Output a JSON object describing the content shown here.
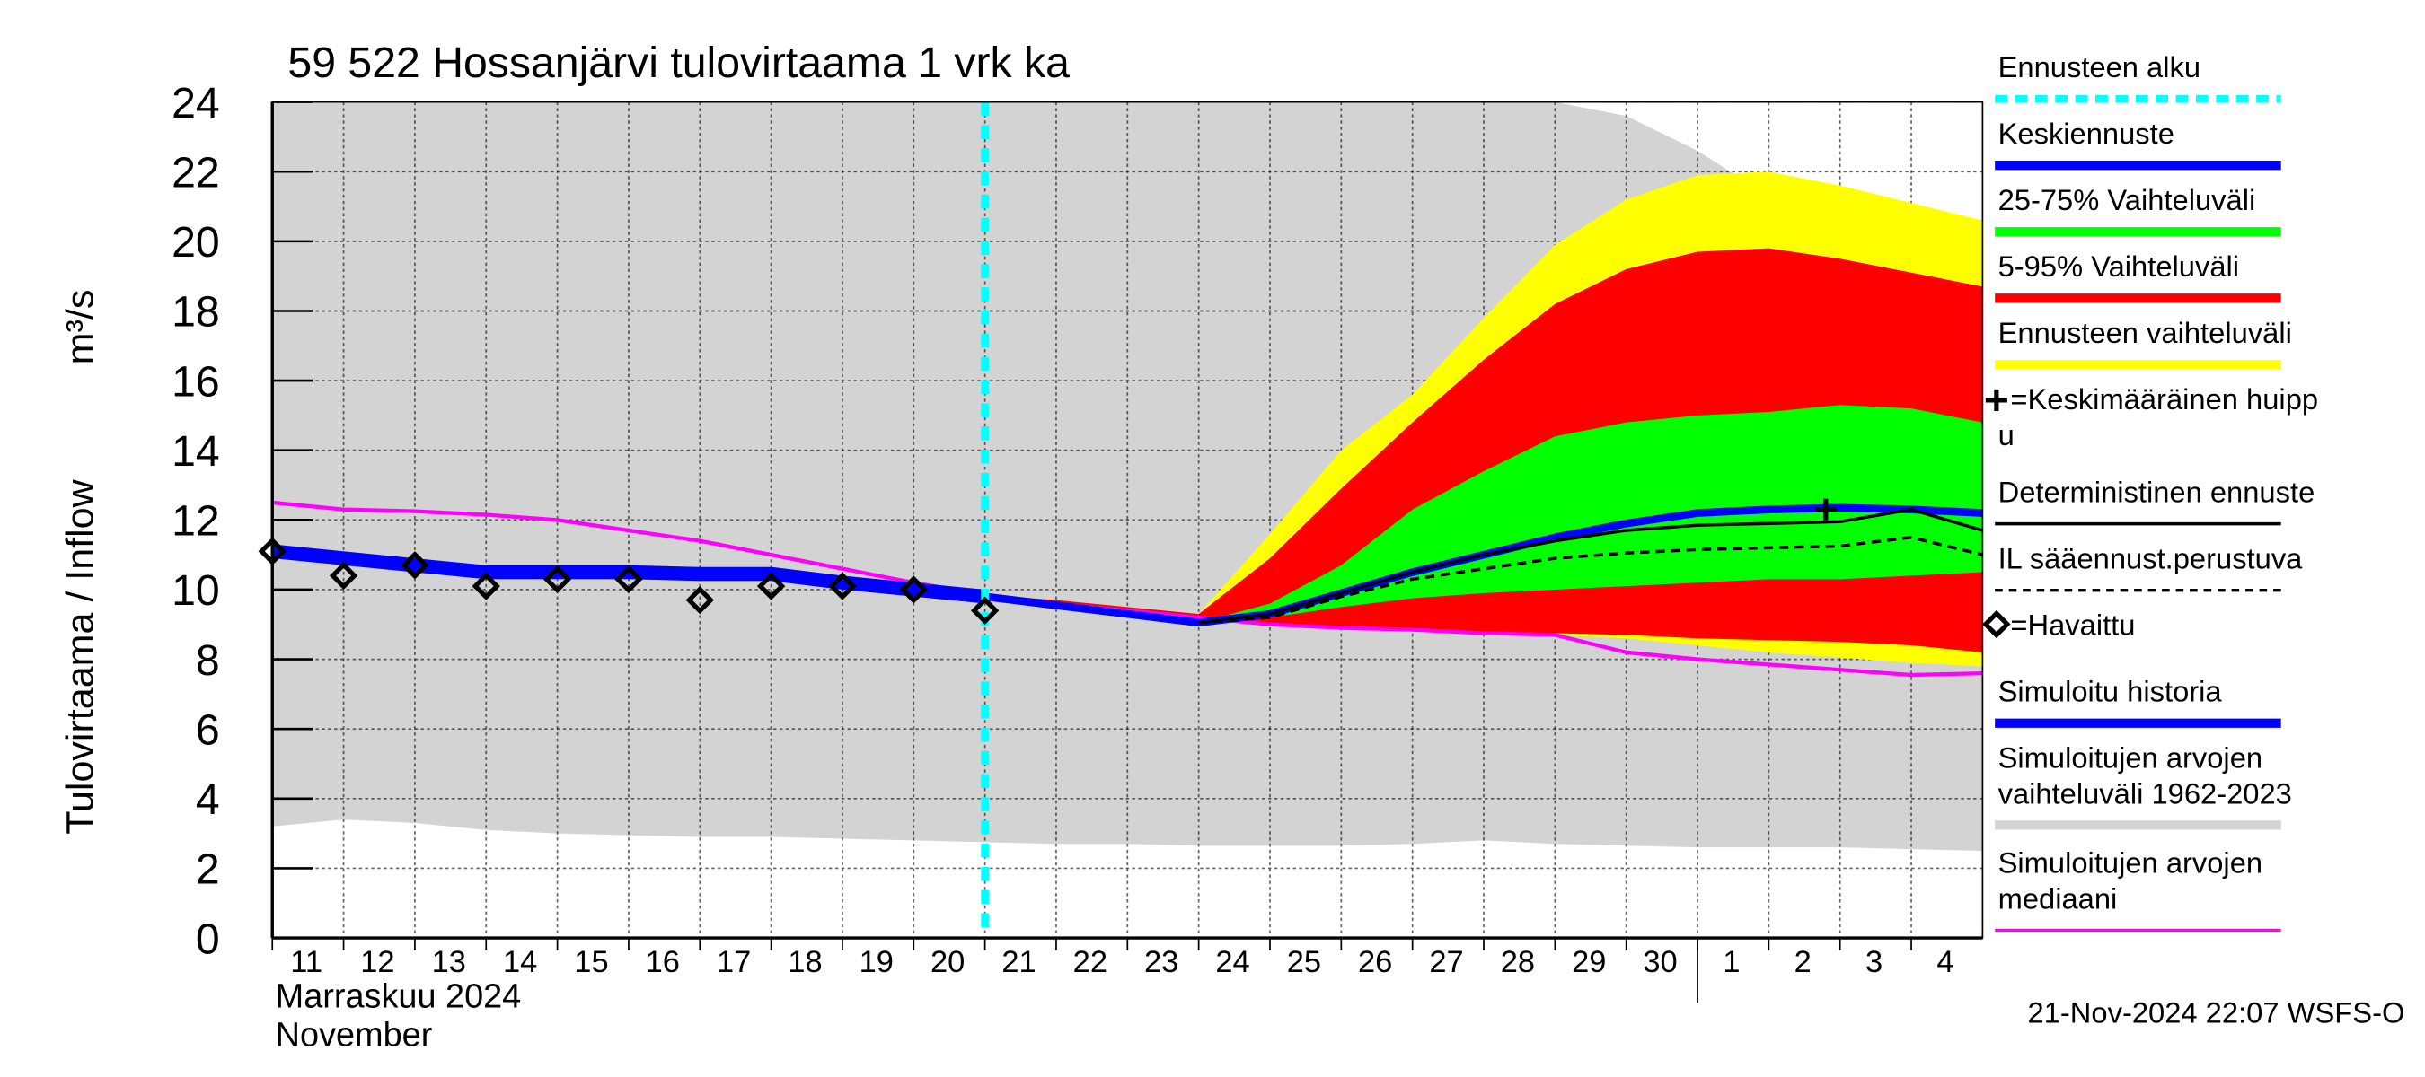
{
  "chart_data": {
    "type": "line",
    "title": "59 522 Hossanjärvi tulovirtaama 1 vrk ka",
    "y_label": "Tulovirtaama / Inflow",
    "y_unit": "m³/s",
    "month_label": [
      "Marraskuu 2024",
      "November"
    ],
    "timestamp": "21-Nov-2024 22:07 WSFS-O",
    "xlim": [
      0,
      24
    ],
    "xticks": [
      {
        "value": 0,
        "label": "11"
      },
      {
        "value": 1,
        "label": "12"
      },
      {
        "value": 2,
        "label": "13"
      },
      {
        "value": 3,
        "label": "14"
      },
      {
        "value": 4,
        "label": "15"
      },
      {
        "value": 5,
        "label": "16"
      },
      {
        "value": 6,
        "label": "17"
      },
      {
        "value": 7,
        "label": "18"
      },
      {
        "value": 8,
        "label": "19"
      },
      {
        "value": 9,
        "label": "20"
      },
      {
        "value": 10,
        "label": "21"
      },
      {
        "value": 11,
        "label": "22"
      },
      {
        "value": 12,
        "label": "23"
      },
      {
        "value": 13,
        "label": "24"
      },
      {
        "value": 14,
        "label": "25"
      },
      {
        "value": 15,
        "label": "26"
      },
      {
        "value": 16,
        "label": "27"
      },
      {
        "value": 17,
        "label": "28"
      },
      {
        "value": 18,
        "label": "29"
      },
      {
        "value": 19,
        "label": "30"
      },
      {
        "value": 20,
        "label": "1"
      },
      {
        "value": 21,
        "label": "2"
      },
      {
        "value": 22,
        "label": "3"
      },
      {
        "value": 23,
        "label": "4"
      }
    ],
    "month_break": 20,
    "ylim": [
      0,
      24
    ],
    "yticks": [
      0,
      2,
      4,
      6,
      8,
      10,
      12,
      14,
      16,
      18,
      20,
      22,
      24
    ],
    "grid": true,
    "forecast_start": 10,
    "series": [
      {
        "name": "Simuloitujen arvojen vaihteluväli 1962-2023",
        "kind": "band",
        "color": "#d3d3d3",
        "x": [
          0,
          1,
          2,
          3,
          4,
          5,
          6,
          7,
          8,
          9,
          10,
          11,
          12,
          13,
          14,
          15,
          16,
          17,
          18,
          19,
          20,
          21,
          22,
          23,
          24
        ],
        "upper": [
          24,
          24,
          24,
          24,
          24,
          24,
          24,
          24,
          24,
          24,
          24,
          24,
          24,
          24,
          24,
          24,
          24,
          24,
          24,
          23.6,
          22.6,
          21.3,
          20.3,
          19.5,
          19
        ],
        "lower": [
          3.2,
          3.4,
          3.3,
          3.1,
          3,
          2.95,
          2.9,
          2.9,
          2.85,
          2.8,
          2.75,
          2.7,
          2.7,
          2.65,
          2.65,
          2.65,
          2.7,
          2.8,
          2.7,
          2.65,
          2.6,
          2.6,
          2.6,
          2.55,
          2.5
        ]
      },
      {
        "name": "Ennusteen vaihteluväli",
        "kind": "band",
        "color": "#ffff00",
        "x": [
          10,
          11,
          12,
          13,
          14,
          15,
          16,
          17,
          18,
          19,
          20,
          21,
          22,
          23,
          24
        ],
        "upper": [
          9.85,
          9.7,
          9.5,
          9.3,
          11.6,
          14,
          15.6,
          17.8,
          19.9,
          21.2,
          21.9,
          22,
          21.6,
          21.1,
          20.6
        ],
        "lower": [
          9.85,
          9.6,
          9.35,
          9.15,
          9,
          8.9,
          8.8,
          8.75,
          8.7,
          8.6,
          8.4,
          8.2,
          8.05,
          7.9,
          7.8
        ]
      },
      {
        "name": "5-95% Vaihteluväli",
        "kind": "band",
        "color": "#ff0000",
        "x": [
          10,
          11,
          12,
          13,
          14,
          15,
          16,
          17,
          18,
          19,
          20,
          21,
          22,
          23,
          24
        ],
        "upper": [
          9.85,
          9.7,
          9.5,
          9.3,
          10.9,
          12.9,
          14.8,
          16.6,
          18.2,
          19.2,
          19.7,
          19.8,
          19.5,
          19.1,
          18.7
        ],
        "lower": [
          9.85,
          9.6,
          9.35,
          9.15,
          9,
          8.9,
          8.85,
          8.8,
          8.75,
          8.7,
          8.6,
          8.55,
          8.5,
          8.4,
          8.2
        ]
      },
      {
        "name": "25-75% Vaihteluväli",
        "kind": "band",
        "color": "#00ff00",
        "x": [
          10,
          11,
          12,
          13,
          14,
          15,
          16,
          17,
          18,
          19,
          20,
          21,
          22,
          23,
          24
        ],
        "upper": [
          9.8,
          9.55,
          9.3,
          9.05,
          9.6,
          10.7,
          12.3,
          13.4,
          14.4,
          14.8,
          15,
          15.1,
          15.3,
          15.2,
          14.8
        ],
        "lower": [
          9.8,
          9.55,
          9.3,
          9.05,
          9.2,
          9.5,
          9.75,
          9.9,
          10,
          10.1,
          10.2,
          10.3,
          10.3,
          10.4,
          10.5
        ]
      },
      {
        "name": "Simuloitujen arvojen mediaani",
        "kind": "line",
        "color": "#ff00ff",
        "width": 2.5,
        "x": [
          0,
          1,
          2,
          3,
          4,
          5,
          6,
          7,
          8,
          9,
          10,
          11,
          12,
          13,
          14,
          15,
          16,
          17,
          18,
          19,
          20,
          21,
          22,
          23,
          24
        ],
        "values": [
          12.5,
          12.3,
          12.25,
          12.15,
          12,
          11.7,
          11.4,
          11,
          10.6,
          10.2,
          9.85,
          9.6,
          9.4,
          9.2,
          9,
          8.9,
          8.85,
          8.75,
          8.7,
          8.2,
          8,
          7.85,
          7.7,
          7.55,
          7.6
        ]
      },
      {
        "name": "Simuloitu historia",
        "kind": "line",
        "color": "#0000ff",
        "width": 9,
        "x": [
          0,
          1,
          2,
          3,
          4,
          5,
          6,
          7,
          8,
          9,
          10
        ],
        "values": [
          11.1,
          10.9,
          10.7,
          10.5,
          10.5,
          10.5,
          10.45,
          10.45,
          10.2,
          10,
          9.8
        ]
      },
      {
        "name": "Keskiennuste",
        "kind": "line",
        "color": "#0000ff",
        "width": 5,
        "x": [
          10,
          11,
          12,
          13,
          14,
          15,
          16,
          17,
          18,
          19,
          20,
          21,
          22,
          23,
          24
        ],
        "values": [
          9.8,
          9.55,
          9.3,
          9.05,
          9.3,
          9.9,
          10.5,
          11,
          11.5,
          11.9,
          12.2,
          12.3,
          12.35,
          12.3,
          12.2
        ]
      },
      {
        "name": "Deterministinen ennuste",
        "kind": "line",
        "color": "#000000",
        "width": 2,
        "x": [
          13,
          14,
          15,
          16,
          17,
          18,
          19,
          20,
          21,
          22,
          23,
          24
        ],
        "values": [
          9.05,
          9.3,
          9.9,
          10.5,
          11,
          11.4,
          11.7,
          11.85,
          11.9,
          11.95,
          12.3,
          11.7
        ]
      },
      {
        "name": "IL sääennust.perustuva",
        "kind": "line",
        "color": "#000000",
        "width": 2,
        "dash": "6,4",
        "x": [
          13,
          14,
          15,
          16,
          17,
          18,
          19,
          20,
          21,
          22,
          23,
          24
        ],
        "values": [
          9.05,
          9.2,
          9.8,
          10.3,
          10.6,
          10.9,
          11.05,
          11.15,
          11.2,
          11.25,
          11.5,
          11
        ]
      },
      {
        "name": "=Havaittu",
        "kind": "marker",
        "color": "#000000",
        "x": [
          0,
          1,
          2,
          3,
          4,
          5,
          6,
          7,
          8,
          9,
          10
        ],
        "values": [
          11.1,
          10.4,
          10.7,
          10.1,
          10.3,
          10.3,
          9.7,
          10.1,
          10.1,
          10,
          9.4
        ]
      },
      {
        "name": "=Keskimääräinen huippu",
        "kind": "cross",
        "color": "#000000",
        "x": [
          21.8
        ],
        "values": [
          12.3
        ]
      }
    ],
    "legend": [
      {
        "label": [
          "Ennusteen alku"
        ],
        "color": "#00ffff",
        "style": "dash"
      },
      {
        "label": [
          "Keskiennuste"
        ],
        "color": "#0000ff",
        "style": "thick"
      },
      {
        "label": [
          "25-75% Vaihteluväli"
        ],
        "color": "#00ff00",
        "style": "thick"
      },
      {
        "label": [
          "5-95% Vaihteluväli"
        ],
        "color": "#ff0000",
        "style": "thick"
      },
      {
        "label": [
          "Ennusteen vaihteluväli"
        ],
        "color": "#ffff00",
        "style": "thick"
      },
      {
        "label": [
          "=Keskimääräinen huipp",
          "u"
        ],
        "color": "#000000",
        "style": "cross"
      },
      {
        "label": [
          "Deterministinen ennuste"
        ],
        "color": "#000000",
        "style": "thin"
      },
      {
        "label": [
          "IL sääennust.perustuva"
        ],
        "color": "#000000",
        "style": "dashthin"
      },
      {
        "label": [
          "=Havaittu"
        ],
        "color": "#000000",
        "style": "diamond"
      },
      {
        "label": [
          "Simuloitu historia"
        ],
        "color": "#0000ff",
        "style": "thick"
      },
      {
        "label": [
          "Simuloitujen arvojen",
          "vaihteluväli 1962-2023"
        ],
        "color": "#d3d3d3",
        "style": "thick"
      },
      {
        "label": [
          "Simuloitujen arvojen",
          "mediaani"
        ],
        "color": "#ff00ff",
        "style": "thin"
      }
    ]
  }
}
